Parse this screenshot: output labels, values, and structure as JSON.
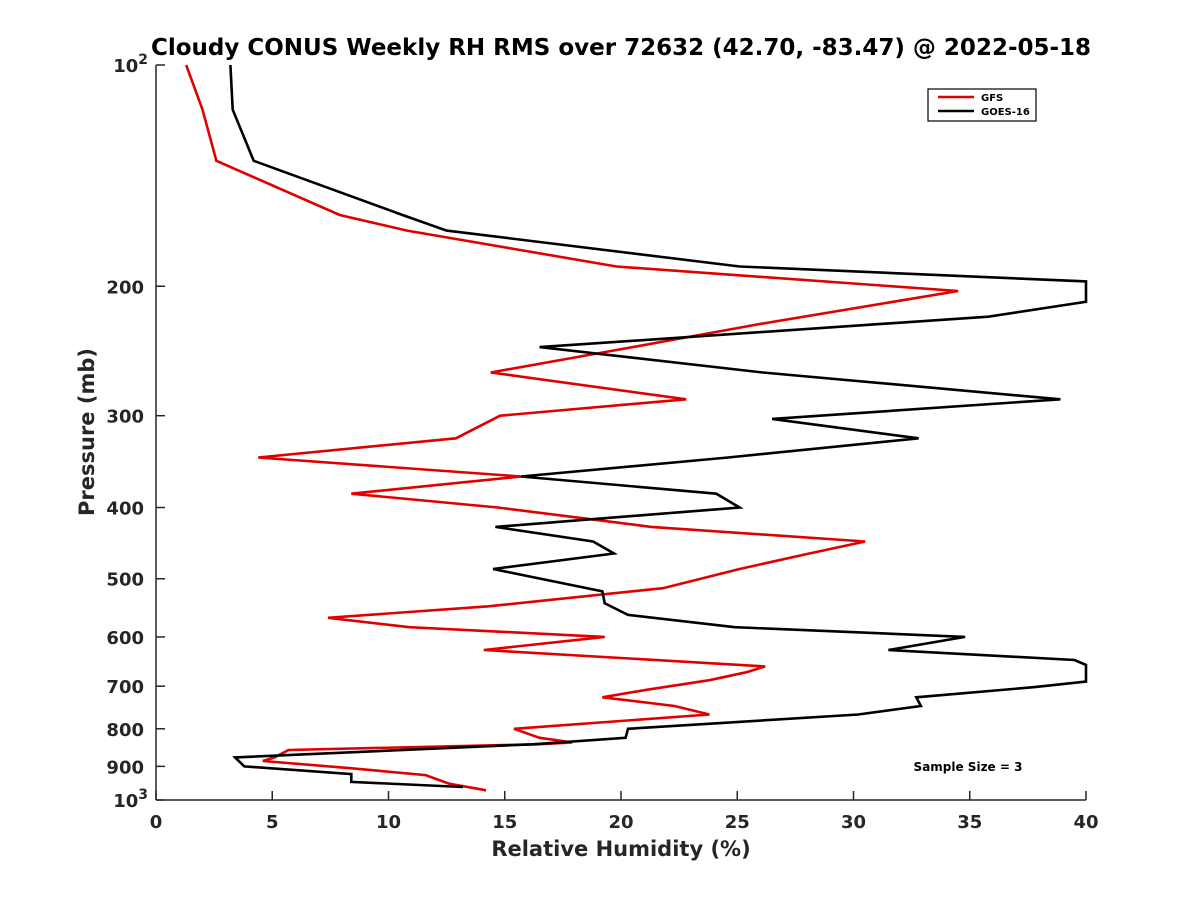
{
  "chart_data": {
    "type": "line",
    "title": "Cloudy CONUS Weekly RH RMS over 72632 (42.70, -83.47) @ 2022-05-18",
    "xlabel": "Relative Humidity (%)",
    "ylabel": "Pressure (mb)",
    "xlim": [
      0,
      40
    ],
    "ylim": [
      100,
      1000
    ],
    "y_scale": "log",
    "y_reversed": true,
    "grid": false,
    "legend_position": "top-right",
    "x_ticks": [
      {
        "value": 0,
        "label": "0"
      },
      {
        "value": 5,
        "label": "5"
      },
      {
        "value": 10,
        "label": "10"
      },
      {
        "value": 15,
        "label": "15"
      },
      {
        "value": 20,
        "label": "20"
      },
      {
        "value": 25,
        "label": "25"
      },
      {
        "value": 30,
        "label": "30"
      },
      {
        "value": 35,
        "label": "35"
      },
      {
        "value": 40,
        "label": "40"
      }
    ],
    "y_ticks": [
      {
        "value": 100,
        "base": "10",
        "exp": "2"
      },
      {
        "value": 200,
        "label": "200"
      },
      {
        "value": 300,
        "label": "300"
      },
      {
        "value": 400,
        "label": "400"
      },
      {
        "value": 500,
        "label": "500"
      },
      {
        "value": 600,
        "label": "600"
      },
      {
        "value": 700,
        "label": "700"
      },
      {
        "value": 800,
        "label": "800"
      },
      {
        "value": 900,
        "label": "900"
      },
      {
        "value": 1000,
        "base": "10",
        "exp": "3"
      }
    ],
    "annotation": "Sample Size = 3",
    "series": [
      {
        "name": "GFS",
        "color": "#e00000",
        "points": [
          [
            1.3,
            100
          ],
          [
            2.0,
            115
          ],
          [
            2.6,
            135
          ],
          [
            7.9,
            160
          ],
          [
            10.8,
            168
          ],
          [
            19.8,
            188
          ],
          [
            34.5,
            203
          ],
          [
            26.0,
            225
          ],
          [
            20.5,
            242
          ],
          [
            14.4,
            262
          ],
          [
            22.8,
            285
          ],
          [
            14.8,
            300
          ],
          [
            12.9,
            322
          ],
          [
            4.4,
            342
          ],
          [
            15.7,
            363
          ],
          [
            8.4,
            383
          ],
          [
            14.7,
            400
          ],
          [
            21.3,
            425
          ],
          [
            30.5,
            445
          ],
          [
            28.1,
            462
          ],
          [
            25.1,
            485
          ],
          [
            21.8,
            515
          ],
          [
            14.3,
            545
          ],
          [
            7.4,
            565
          ],
          [
            10.9,
            582
          ],
          [
            19.3,
            600
          ],
          [
            14.1,
            625
          ],
          [
            26.2,
            658
          ],
          [
            25.4,
            670
          ],
          [
            23.8,
            687
          ],
          [
            21.1,
            708
          ],
          [
            19.2,
            725
          ],
          [
            22.3,
            745
          ],
          [
            23.8,
            765
          ],
          [
            15.4,
            800
          ],
          [
            16.5,
            823
          ],
          [
            17.9,
            835
          ],
          [
            16.4,
            840
          ],
          [
            5.7,
            855
          ],
          [
            5.4,
            865
          ],
          [
            5.1,
            875
          ],
          [
            4.6,
            885
          ],
          [
            8.3,
            905
          ],
          [
            11.6,
            925
          ],
          [
            12.6,
            950
          ],
          [
            14.2,
            970
          ]
        ]
      },
      {
        "name": "GOES-16",
        "color": "#000000",
        "points": [
          [
            3.2,
            100
          ],
          [
            3.3,
            115
          ],
          [
            4.2,
            135
          ],
          [
            10.6,
            160
          ],
          [
            12.5,
            168
          ],
          [
            25.1,
            188
          ],
          [
            40.0,
            197
          ],
          [
            40.0,
            210
          ],
          [
            35.8,
            220
          ],
          [
            16.5,
            242
          ],
          [
            26.1,
            262
          ],
          [
            38.9,
            285
          ],
          [
            26.5,
            303
          ],
          [
            32.8,
            322
          ],
          [
            24.6,
            342
          ],
          [
            15.7,
            363
          ],
          [
            24.1,
            383
          ],
          [
            25.1,
            400
          ],
          [
            14.6,
            425
          ],
          [
            18.8,
            445
          ],
          [
            19.7,
            462
          ],
          [
            14.5,
            485
          ],
          [
            19.2,
            520
          ],
          [
            19.3,
            540
          ],
          [
            20.3,
            560
          ],
          [
            24.9,
            582
          ],
          [
            34.8,
            600
          ],
          [
            31.5,
            625
          ],
          [
            39.5,
            645
          ],
          [
            40.0,
            655
          ],
          [
            40.0,
            690
          ],
          [
            37.8,
            702
          ],
          [
            32.7,
            725
          ],
          [
            32.9,
            745
          ],
          [
            30.2,
            765
          ],
          [
            20.3,
            800
          ],
          [
            20.2,
            823
          ],
          [
            16.2,
            840
          ],
          [
            3.4,
            875
          ],
          [
            3.8,
            900
          ],
          [
            8.4,
            922
          ],
          [
            8.4,
            945
          ],
          [
            13.2,
            960
          ]
        ]
      }
    ]
  }
}
